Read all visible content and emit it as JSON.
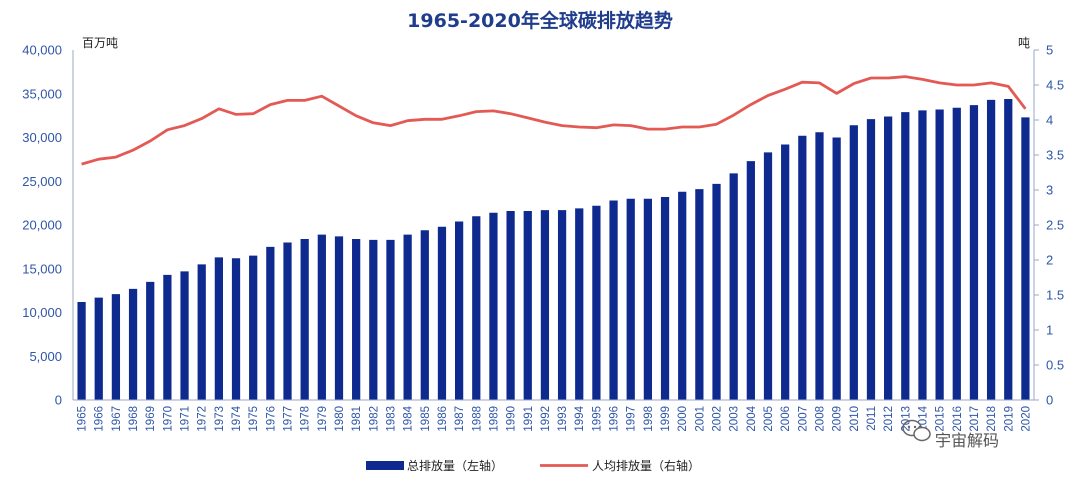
{
  "chart_data": {
    "type": "bar",
    "title": "1965-2020年全球碳排放趋势",
    "left_axis_unit": "百万吨",
    "right_axis_unit": "吨",
    "ylim_left": [
      0,
      40000
    ],
    "ylim_right": [
      0,
      5
    ],
    "yticks_left": [
      "0",
      "5,000",
      "10,000",
      "15,000",
      "20,000",
      "25,000",
      "30,000",
      "35,000",
      "40,000"
    ],
    "yticks_right": [
      "0",
      "0.5",
      "1",
      "1.5",
      "2",
      "2.5",
      "3",
      "3.5",
      "4",
      "4.5",
      "5"
    ],
    "categories": [
      "1965",
      "1966",
      "1967",
      "1968",
      "1969",
      "1970",
      "1971",
      "1972",
      "1973",
      "1974",
      "1975",
      "1976",
      "1977",
      "1978",
      "1979",
      "1980",
      "1981",
      "1982",
      "1983",
      "1984",
      "1985",
      "1986",
      "1987",
      "1988",
      "1989",
      "1990",
      "1991",
      "1992",
      "1993",
      "1994",
      "1995",
      "1996",
      "1997",
      "1998",
      "1999",
      "2000",
      "2001",
      "2002",
      "2003",
      "2004",
      "2005",
      "2006",
      "2007",
      "2008",
      "2009",
      "2010",
      "2011",
      "2012",
      "2013",
      "2014",
      "2015",
      "2016",
      "2017",
      "2018",
      "2019",
      "2020"
    ],
    "series": [
      {
        "name": "总排放量（左轴）",
        "type": "bar",
        "axis": "left",
        "color": "#0e2a8e",
        "values": [
          11200,
          11700,
          12100,
          12700,
          13500,
          14300,
          14700,
          15500,
          16300,
          16200,
          16500,
          17500,
          18000,
          18400,
          18900,
          18700,
          18400,
          18300,
          18300,
          18900,
          19400,
          19800,
          20400,
          21000,
          21400,
          21600,
          21600,
          21700,
          21700,
          21900,
          22200,
          22800,
          23000,
          23000,
          23200,
          23800,
          24100,
          24700,
          25900,
          27300,
          28300,
          29200,
          30200,
          30600,
          30000,
          31400,
          32100,
          32400,
          32900,
          33100,
          33200,
          33400,
          33700,
          34300,
          34400,
          32300
        ]
      },
      {
        "name": "人均排放量（右轴）",
        "type": "line",
        "axis": "right",
        "color": "#e35a55",
        "values": [
          3.37,
          3.44,
          3.47,
          3.57,
          3.7,
          3.86,
          3.92,
          4.02,
          4.16,
          4.08,
          4.09,
          4.22,
          4.28,
          4.28,
          4.34,
          4.2,
          4.06,
          3.96,
          3.92,
          3.99,
          4.01,
          4.01,
          4.06,
          4.12,
          4.13,
          4.09,
          4.03,
          3.97,
          3.92,
          3.9,
          3.89,
          3.93,
          3.92,
          3.87,
          3.87,
          3.9,
          3.9,
          3.94,
          4.07,
          4.22,
          4.35,
          4.44,
          4.54,
          4.53,
          4.38,
          4.52,
          4.6,
          4.6,
          4.62,
          4.58,
          4.53,
          4.5,
          4.5,
          4.53,
          4.48,
          4.16
        ]
      }
    ],
    "grid": false,
    "legend_position": "bottom"
  },
  "watermark": {
    "icon": "wechat-icon",
    "text": "宇宙解码"
  }
}
